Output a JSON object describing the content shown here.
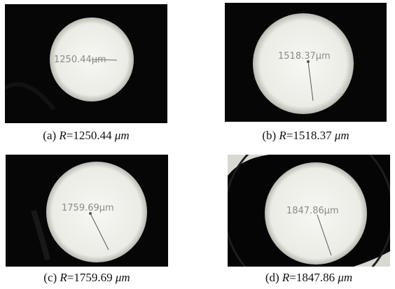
{
  "panels": [
    {
      "id": "a",
      "label": "(a)",
      "var": "R",
      "eq": "=",
      "value": "1250.44",
      "unit": "μm",
      "overlay": "1250.44μm"
    },
    {
      "id": "b",
      "label": "(b)",
      "var": "R",
      "eq": "=",
      "value": "1518.37",
      "unit": "μm",
      "overlay": "1518.37μm"
    },
    {
      "id": "c",
      "label": "(c)",
      "var": "R",
      "eq": "=",
      "value": "1759.69",
      "unit": "μm",
      "overlay": "1759.69μm"
    },
    {
      "id": "d",
      "label": "(d)",
      "var": "R",
      "eq": "=",
      "value": "1847.86",
      "unit": "μm",
      "overlay": "1847.86μm"
    }
  ]
}
